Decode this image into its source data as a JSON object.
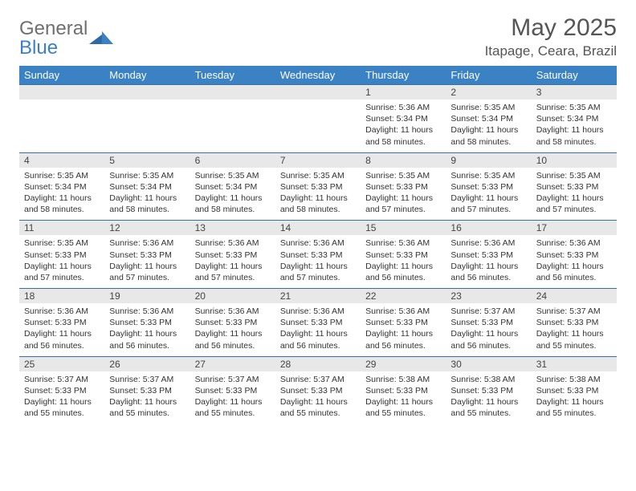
{
  "logo": {
    "text_general": "General",
    "text_blue": "Blue"
  },
  "title": "May 2025",
  "location": "Itapage, Ceara, Brazil",
  "colors": {
    "header_bg": "#3b82c4",
    "header_fg": "#ffffff",
    "week_border": "#3b6fa0",
    "daynum_bg": "#e8e8e8",
    "page_bg": "#ffffff",
    "text": "#333333",
    "logo_gray": "#6f6f6f",
    "logo_blue": "#3b7fc4"
  },
  "day_labels": [
    "Sunday",
    "Monday",
    "Tuesday",
    "Wednesday",
    "Thursday",
    "Friday",
    "Saturday"
  ],
  "weeks": [
    [
      {
        "n": "",
        "sr": "",
        "ss": "",
        "dl": ""
      },
      {
        "n": "",
        "sr": "",
        "ss": "",
        "dl": ""
      },
      {
        "n": "",
        "sr": "",
        "ss": "",
        "dl": ""
      },
      {
        "n": "",
        "sr": "",
        "ss": "",
        "dl": ""
      },
      {
        "n": "1",
        "sr": "Sunrise: 5:36 AM",
        "ss": "Sunset: 5:34 PM",
        "dl": "Daylight: 11 hours and 58 minutes."
      },
      {
        "n": "2",
        "sr": "Sunrise: 5:35 AM",
        "ss": "Sunset: 5:34 PM",
        "dl": "Daylight: 11 hours and 58 minutes."
      },
      {
        "n": "3",
        "sr": "Sunrise: 5:35 AM",
        "ss": "Sunset: 5:34 PM",
        "dl": "Daylight: 11 hours and 58 minutes."
      }
    ],
    [
      {
        "n": "4",
        "sr": "Sunrise: 5:35 AM",
        "ss": "Sunset: 5:34 PM",
        "dl": "Daylight: 11 hours and 58 minutes."
      },
      {
        "n": "5",
        "sr": "Sunrise: 5:35 AM",
        "ss": "Sunset: 5:34 PM",
        "dl": "Daylight: 11 hours and 58 minutes."
      },
      {
        "n": "6",
        "sr": "Sunrise: 5:35 AM",
        "ss": "Sunset: 5:34 PM",
        "dl": "Daylight: 11 hours and 58 minutes."
      },
      {
        "n": "7",
        "sr": "Sunrise: 5:35 AM",
        "ss": "Sunset: 5:33 PM",
        "dl": "Daylight: 11 hours and 58 minutes."
      },
      {
        "n": "8",
        "sr": "Sunrise: 5:35 AM",
        "ss": "Sunset: 5:33 PM",
        "dl": "Daylight: 11 hours and 57 minutes."
      },
      {
        "n": "9",
        "sr": "Sunrise: 5:35 AM",
        "ss": "Sunset: 5:33 PM",
        "dl": "Daylight: 11 hours and 57 minutes."
      },
      {
        "n": "10",
        "sr": "Sunrise: 5:35 AM",
        "ss": "Sunset: 5:33 PM",
        "dl": "Daylight: 11 hours and 57 minutes."
      }
    ],
    [
      {
        "n": "11",
        "sr": "Sunrise: 5:35 AM",
        "ss": "Sunset: 5:33 PM",
        "dl": "Daylight: 11 hours and 57 minutes."
      },
      {
        "n": "12",
        "sr": "Sunrise: 5:36 AM",
        "ss": "Sunset: 5:33 PM",
        "dl": "Daylight: 11 hours and 57 minutes."
      },
      {
        "n": "13",
        "sr": "Sunrise: 5:36 AM",
        "ss": "Sunset: 5:33 PM",
        "dl": "Daylight: 11 hours and 57 minutes."
      },
      {
        "n": "14",
        "sr": "Sunrise: 5:36 AM",
        "ss": "Sunset: 5:33 PM",
        "dl": "Daylight: 11 hours and 57 minutes."
      },
      {
        "n": "15",
        "sr": "Sunrise: 5:36 AM",
        "ss": "Sunset: 5:33 PM",
        "dl": "Daylight: 11 hours and 56 minutes."
      },
      {
        "n": "16",
        "sr": "Sunrise: 5:36 AM",
        "ss": "Sunset: 5:33 PM",
        "dl": "Daylight: 11 hours and 56 minutes."
      },
      {
        "n": "17",
        "sr": "Sunrise: 5:36 AM",
        "ss": "Sunset: 5:33 PM",
        "dl": "Daylight: 11 hours and 56 minutes."
      }
    ],
    [
      {
        "n": "18",
        "sr": "Sunrise: 5:36 AM",
        "ss": "Sunset: 5:33 PM",
        "dl": "Daylight: 11 hours and 56 minutes."
      },
      {
        "n": "19",
        "sr": "Sunrise: 5:36 AM",
        "ss": "Sunset: 5:33 PM",
        "dl": "Daylight: 11 hours and 56 minutes."
      },
      {
        "n": "20",
        "sr": "Sunrise: 5:36 AM",
        "ss": "Sunset: 5:33 PM",
        "dl": "Daylight: 11 hours and 56 minutes."
      },
      {
        "n": "21",
        "sr": "Sunrise: 5:36 AM",
        "ss": "Sunset: 5:33 PM",
        "dl": "Daylight: 11 hours and 56 minutes."
      },
      {
        "n": "22",
        "sr": "Sunrise: 5:36 AM",
        "ss": "Sunset: 5:33 PM",
        "dl": "Daylight: 11 hours and 56 minutes."
      },
      {
        "n": "23",
        "sr": "Sunrise: 5:37 AM",
        "ss": "Sunset: 5:33 PM",
        "dl": "Daylight: 11 hours and 56 minutes."
      },
      {
        "n": "24",
        "sr": "Sunrise: 5:37 AM",
        "ss": "Sunset: 5:33 PM",
        "dl": "Daylight: 11 hours and 55 minutes."
      }
    ],
    [
      {
        "n": "25",
        "sr": "Sunrise: 5:37 AM",
        "ss": "Sunset: 5:33 PM",
        "dl": "Daylight: 11 hours and 55 minutes."
      },
      {
        "n": "26",
        "sr": "Sunrise: 5:37 AM",
        "ss": "Sunset: 5:33 PM",
        "dl": "Daylight: 11 hours and 55 minutes."
      },
      {
        "n": "27",
        "sr": "Sunrise: 5:37 AM",
        "ss": "Sunset: 5:33 PM",
        "dl": "Daylight: 11 hours and 55 minutes."
      },
      {
        "n": "28",
        "sr": "Sunrise: 5:37 AM",
        "ss": "Sunset: 5:33 PM",
        "dl": "Daylight: 11 hours and 55 minutes."
      },
      {
        "n": "29",
        "sr": "Sunrise: 5:38 AM",
        "ss": "Sunset: 5:33 PM",
        "dl": "Daylight: 11 hours and 55 minutes."
      },
      {
        "n": "30",
        "sr": "Sunrise: 5:38 AM",
        "ss": "Sunset: 5:33 PM",
        "dl": "Daylight: 11 hours and 55 minutes."
      },
      {
        "n": "31",
        "sr": "Sunrise: 5:38 AM",
        "ss": "Sunset: 5:33 PM",
        "dl": "Daylight: 11 hours and 55 minutes."
      }
    ]
  ]
}
